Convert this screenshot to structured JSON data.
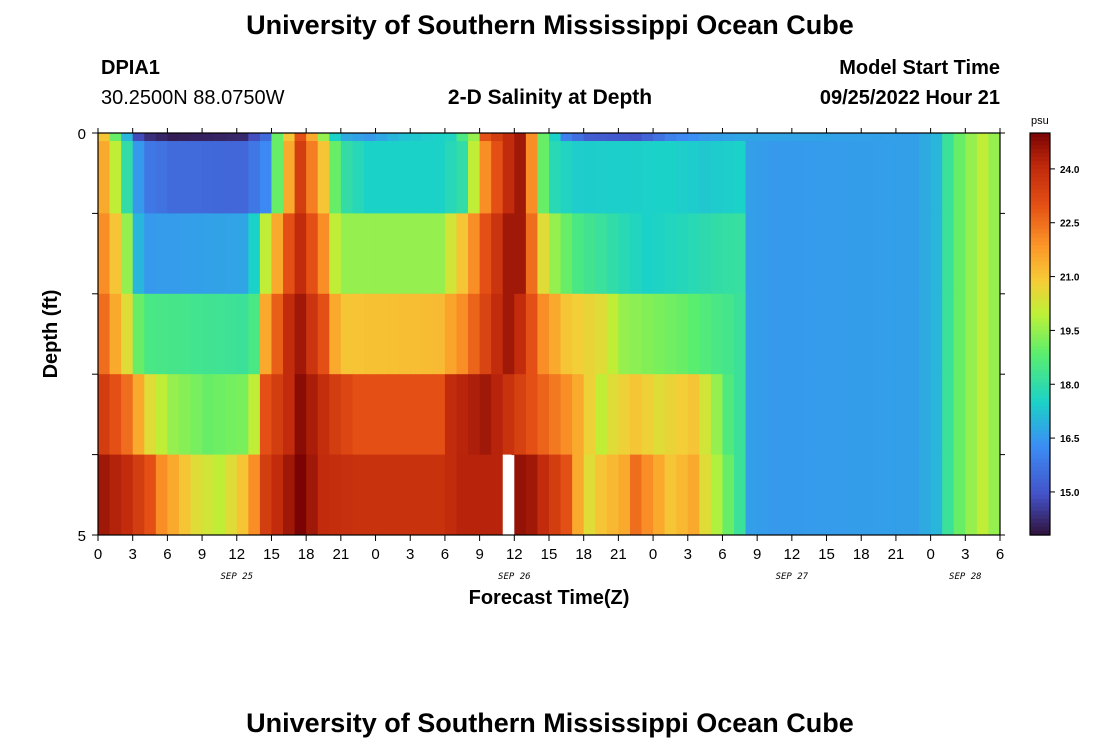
{
  "header": {
    "title": "University of Southern Mississippi Ocean Cube",
    "station": "DPIA1",
    "coords": "30.2500N  88.0750W",
    "subtitle": "2-D Salinity at Depth",
    "model_label": "Model Start Time",
    "model_time": "09/25/2022 Hour 21",
    "footer_title": "University of Southern Mississippi Ocean Cube"
  },
  "colorbar": {
    "unit": "psu",
    "ticks": [
      "24.0",
      "22.5",
      "21.0",
      "19.5",
      "18.0",
      "16.5",
      "15.0"
    ],
    "range": [
      13.8,
      25.0
    ]
  },
  "chart_data": {
    "type": "heatmap",
    "title": "2-D Salinity at Depth",
    "xlabel": "Forecast Time(Z)",
    "ylabel": "Depth (ft)",
    "x_tick_labels": [
      "0",
      "3",
      "6",
      "9",
      "12",
      "15",
      "18",
      "21",
      "0",
      "3",
      "6",
      "9",
      "12",
      "15",
      "18",
      "21",
      "0",
      "3",
      "6",
      "9",
      "12",
      "15",
      "18",
      "21",
      "0",
      "3",
      "6"
    ],
    "date_labels": [
      "SEP 25",
      "SEP 26",
      "SEP 27",
      "SEP 28"
    ],
    "y_tick_labels": [
      "0",
      "5"
    ],
    "depth_rows": 5,
    "time_cols": 79,
    "hours_per_col": 1,
    "ylim": [
      0,
      5
    ],
    "grid": false,
    "missing_cells": [
      {
        "row": 4,
        "col": 35
      }
    ],
    "anchors": [
      [
        [
          0,
          21
        ],
        [
          1,
          19
        ],
        [
          2,
          17
        ],
        [
          3,
          14.8
        ],
        [
          4,
          14.3
        ],
        [
          6,
          14.0
        ],
        [
          12,
          14.2
        ],
        [
          14,
          15.5
        ],
        [
          15,
          19
        ],
        [
          16,
          21
        ],
        [
          17,
          23
        ],
        [
          18,
          21.5
        ],
        [
          19,
          19.5
        ],
        [
          20,
          17.5
        ],
        [
          21,
          16.8
        ],
        [
          23,
          16.5
        ],
        [
          26,
          17.2
        ],
        [
          30,
          17.6
        ],
        [
          32,
          19.5
        ],
        [
          33,
          23
        ],
        [
          36,
          24.5
        ],
        [
          37,
          22
        ],
        [
          38,
          19
        ],
        [
          39,
          17.5
        ],
        [
          40,
          16
        ],
        [
          42,
          15.2
        ],
        [
          46,
          15.0
        ],
        [
          49,
          16.0
        ],
        [
          52,
          16.5
        ],
        [
          55,
          16.7
        ],
        [
          70,
          16.6
        ],
        [
          72,
          17.0
        ],
        [
          73,
          18.2
        ],
        [
          74,
          19.0
        ],
        [
          76,
          20.0
        ],
        [
          77,
          19.5
        ],
        [
          78,
          18.5
        ]
      ],
      [
        [
          0,
          21.5
        ],
        [
          1,
          20
        ],
        [
          2,
          18
        ],
        [
          3,
          16.5
        ],
        [
          4,
          15.8
        ],
        [
          6,
          15.5
        ],
        [
          12,
          15.4
        ],
        [
          14,
          16.2
        ],
        [
          15,
          19
        ],
        [
          16,
          21.5
        ],
        [
          17,
          23.5
        ],
        [
          19,
          21
        ],
        [
          20,
          19
        ],
        [
          21,
          18
        ],
        [
          23,
          17.5
        ],
        [
          29,
          17.5
        ],
        [
          31,
          18
        ],
        [
          33,
          22
        ],
        [
          35,
          24
        ],
        [
          36,
          24.5
        ],
        [
          37,
          22
        ],
        [
          38,
          19
        ],
        [
          39,
          17.8
        ],
        [
          41,
          17.4
        ],
        [
          49,
          17.5
        ],
        [
          52,
          17.3
        ],
        [
          55,
          17.5
        ],
        [
          56,
          16.6
        ],
        [
          58,
          16.5
        ],
        [
          70,
          16.6
        ],
        [
          72,
          17.0
        ],
        [
          73,
          18.2
        ],
        [
          74,
          19.0
        ],
        [
          76,
          20.0
        ],
        [
          77,
          19.5
        ],
        [
          78,
          18.5
        ]
      ],
      [
        [
          0,
          22
        ],
        [
          1,
          21
        ],
        [
          2,
          19.5
        ],
        [
          3,
          17
        ],
        [
          4,
          16.5
        ],
        [
          12,
          16.7
        ],
        [
          13,
          17.5
        ],
        [
          14,
          20
        ],
        [
          16,
          23
        ],
        [
          17,
          24
        ],
        [
          19,
          22
        ],
        [
          20,
          20
        ],
        [
          21,
          19.5
        ],
        [
          29,
          19.5
        ],
        [
          31,
          21
        ],
        [
          33,
          23
        ],
        [
          35,
          24.5
        ],
        [
          36,
          24.5
        ],
        [
          37,
          22.5
        ],
        [
          38,
          20.5
        ],
        [
          39,
          19.5
        ],
        [
          41,
          18.5
        ],
        [
          45,
          17.8
        ],
        [
          47,
          17.5
        ],
        [
          50,
          17.7
        ],
        [
          53,
          18
        ],
        [
          55,
          18.1
        ],
        [
          56,
          16.6
        ],
        [
          58,
          16.5
        ],
        [
          70,
          16.6
        ],
        [
          72,
          17.0
        ],
        [
          73,
          18.2
        ],
        [
          74,
          19.0
        ],
        [
          76,
          20.0
        ],
        [
          77,
          19.5
        ],
        [
          78,
          18.5
        ]
      ],
      [
        [
          0,
          22.5
        ],
        [
          1,
          21.5
        ],
        [
          2,
          20.5
        ],
        [
          3,
          19
        ],
        [
          4,
          18.5
        ],
        [
          12,
          18.2
        ],
        [
          13,
          18.5
        ],
        [
          14,
          21.5
        ],
        [
          16,
          24
        ],
        [
          17,
          24.5
        ],
        [
          19,
          23
        ],
        [
          20,
          21.5
        ],
        [
          21,
          21
        ],
        [
          29,
          21.2
        ],
        [
          31,
          22
        ],
        [
          34,
          24
        ],
        [
          35,
          24.5
        ],
        [
          36,
          24
        ],
        [
          38,
          22
        ],
        [
          40,
          21
        ],
        [
          43,
          20.5
        ],
        [
          45,
          19.5
        ],
        [
          48,
          19.2
        ],
        [
          50,
          19
        ],
        [
          53,
          18.5
        ],
        [
          54,
          18.4
        ],
        [
          55,
          18.2
        ],
        [
          56,
          16.6
        ],
        [
          58,
          16.5
        ],
        [
          70,
          16.6
        ],
        [
          72,
          17.0
        ],
        [
          73,
          18.2
        ],
        [
          74,
          19.0
        ],
        [
          76,
          20.0
        ],
        [
          77,
          19.5
        ],
        [
          78,
          18.5
        ]
      ],
      [
        [
          0,
          23.5
        ],
        [
          2,
          22.5
        ],
        [
          3,
          21.5
        ],
        [
          4,
          20.5
        ],
        [
          6,
          19.5
        ],
        [
          9,
          19
        ],
        [
          12,
          19.2
        ],
        [
          13,
          20
        ],
        [
          14,
          23
        ],
        [
          16,
          24
        ],
        [
          17,
          24.8
        ],
        [
          20,
          23.5
        ],
        [
          22,
          23
        ],
        [
          29,
          23
        ],
        [
          30,
          24
        ],
        [
          33,
          24.5
        ],
        [
          34,
          24.2
        ],
        [
          37,
          23
        ],
        [
          40,
          22
        ],
        [
          41,
          21.5
        ],
        [
          43,
          20
        ],
        [
          44,
          20.5
        ],
        [
          46,
          21
        ],
        [
          48,
          20.5
        ],
        [
          51,
          21
        ],
        [
          53,
          19.5
        ],
        [
          54,
          18.6
        ],
        [
          55,
          18.2
        ],
        [
          56,
          16.6
        ],
        [
          58,
          16.5
        ],
        [
          70,
          16.6
        ],
        [
          72,
          17.0
        ],
        [
          73,
          18.2
        ],
        [
          74,
          19.0
        ],
        [
          76,
          20.0
        ],
        [
          77,
          19.5
        ],
        [
          78,
          18.5
        ]
      ],
      [
        [
          0,
          24.5
        ],
        [
          2,
          24
        ],
        [
          4,
          23
        ],
        [
          5,
          22
        ],
        [
          6,
          21.5
        ],
        [
          8,
          20.5
        ],
        [
          10,
          20
        ],
        [
          12,
          21
        ],
        [
          13,
          22
        ],
        [
          14,
          23.5
        ],
        [
          16,
          24.5
        ],
        [
          17,
          25
        ],
        [
          19,
          24
        ],
        [
          22,
          23.8
        ],
        [
          29,
          23.8
        ],
        [
          31,
          24.2
        ],
        [
          34,
          24.2
        ],
        [
          35,
          24.8
        ],
        [
          37,
          24.5
        ],
        [
          40,
          23
        ],
        [
          41,
          21.5
        ],
        [
          42,
          20.5
        ],
        [
          43,
          21
        ],
        [
          45,
          21.5
        ],
        [
          46,
          22.5
        ],
        [
          47,
          22
        ],
        [
          48,
          21.5
        ],
        [
          49,
          21
        ],
        [
          51,
          21.5
        ],
        [
          52,
          20.5
        ],
        [
          53,
          19.8
        ],
        [
          54,
          19.0
        ],
        [
          55,
          18.2
        ],
        [
          56,
          16.6
        ],
        [
          58,
          16.5
        ],
        [
          70,
          16.6
        ],
        [
          72,
          17.0
        ],
        [
          73,
          18.2
        ],
        [
          74,
          19.0
        ],
        [
          76,
          20.0
        ],
        [
          77,
          19.5
        ],
        [
          78,
          18.5
        ]
      ]
    ]
  }
}
